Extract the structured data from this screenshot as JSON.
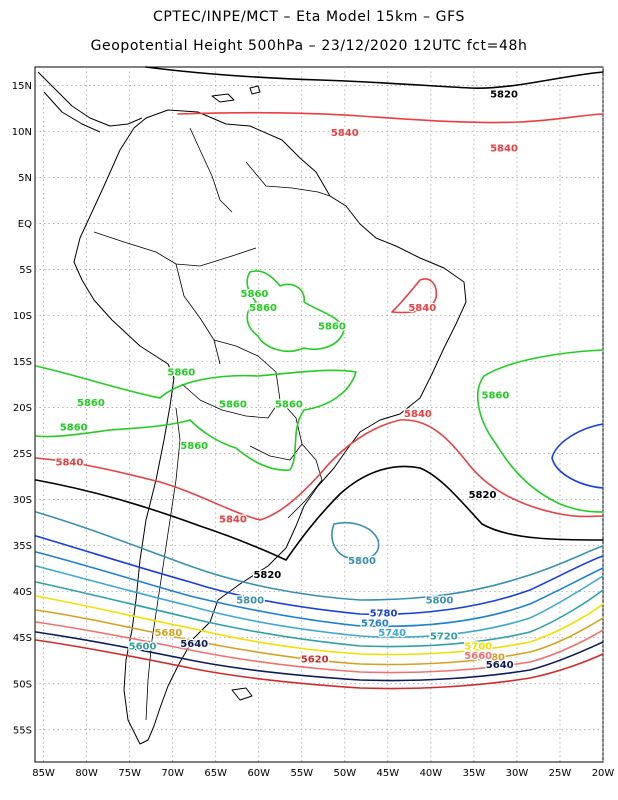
{
  "title": {
    "line1": "CPTEC/INPE/MCT –  Eta Model 15km – GFS",
    "line2": "Geopotential Height 500hPa – 23/12/2020 12UTC fct=48h"
  },
  "axes": {
    "lat_labels": [
      "15N",
      "10N",
      "5N",
      "EQ",
      "5S",
      "10S",
      "15S",
      "20S",
      "25S",
      "30S",
      "35S",
      "40S",
      "45S",
      "50S",
      "55S"
    ],
    "lat_values": [
      15,
      10,
      5,
      0,
      -5,
      -10,
      -15,
      -20,
      -25,
      -30,
      -35,
      -40,
      -45,
      -50,
      -55
    ],
    "lon_labels": [
      "85W",
      "80W",
      "75W",
      "70W",
      "65W",
      "60W",
      "55W",
      "50W",
      "45W",
      "40W",
      "35W",
      "30W",
      "25W",
      "20W"
    ],
    "lon_values": [
      -85,
      -80,
      -75,
      -70,
      -65,
      -60,
      -55,
      -50,
      -45,
      -40,
      -35,
      -30,
      -25,
      -20
    ],
    "lon_range": [
      -86,
      -20
    ],
    "lat_range": [
      -58.5,
      17
    ],
    "grid": "dotted"
  },
  "colors": {
    "c5620": "#d02a2a",
    "c5640": "#0e1a5a",
    "c5660": "#f07070",
    "c5680": "#d4a020",
    "c5700": "#f0e000",
    "c5720": "#30a0a0",
    "c5740": "#40a8d0",
    "c5760": "#2080d0",
    "c5780": "#1840d8",
    "c5800": "#3a8fb0",
    "c5820": "#000000",
    "c5840": "#e84040",
    "c5860": "#22cc22"
  },
  "contour_labels": [
    {
      "text": "5820",
      "lon": -31.5,
      "lat": 13.7,
      "color": "c5820"
    },
    {
      "text": "5840",
      "lon": -50,
      "lat": 9.5,
      "color": "c5840"
    },
    {
      "text": "5840",
      "lon": -31.5,
      "lat": 7.8,
      "color": "c5840"
    },
    {
      "text": "5860",
      "lon": -60.5,
      "lat": -8,
      "color": "c5860"
    },
    {
      "text": "5860",
      "lon": -59.5,
      "lat": -9.5,
      "color": "c5860"
    },
    {
      "text": "5860",
      "lon": -51.5,
      "lat": -11.5,
      "color": "c5860"
    },
    {
      "text": "5840",
      "lon": -41,
      "lat": -9.5,
      "color": "c5840"
    },
    {
      "text": "5860",
      "lon": -69,
      "lat": -16.5,
      "color": "c5860"
    },
    {
      "text": "5860",
      "lon": -79.5,
      "lat": -19.8,
      "color": "c5860"
    },
    {
      "text": "5860",
      "lon": -81.5,
      "lat": -22.5,
      "color": "c5860"
    },
    {
      "text": "5860",
      "lon": -67.5,
      "lat": -24.5,
      "color": "c5860"
    },
    {
      "text": "5860",
      "lon": -63,
      "lat": -20,
      "color": "c5860"
    },
    {
      "text": "5860",
      "lon": -56.5,
      "lat": -20,
      "color": "c5860"
    },
    {
      "text": "5840",
      "lon": -41.5,
      "lat": -21,
      "color": "c5840"
    },
    {
      "text": "5860",
      "lon": -32.5,
      "lat": -19,
      "color": "c5860"
    },
    {
      "text": "5840",
      "lon": -82,
      "lat": -26.3,
      "color": "c5840"
    },
    {
      "text": "5820",
      "lon": -34,
      "lat": -29.8,
      "color": "c5820"
    },
    {
      "text": "5840",
      "lon": -63,
      "lat": -32.5,
      "color": "c5840"
    },
    {
      "text": "5800",
      "lon": -48,
      "lat": -37,
      "color": "c5800"
    },
    {
      "text": "5820",
      "lon": -59,
      "lat": -38.5,
      "color": "c5820"
    },
    {
      "text": "5800",
      "lon": -61,
      "lat": -41.3,
      "color": "c5800"
    },
    {
      "text": "5800",
      "lon": -39,
      "lat": -41.3,
      "color": "c5800"
    },
    {
      "text": "5780",
      "lon": -45.5,
      "lat": -42.7,
      "color": "c5780"
    },
    {
      "text": "5760",
      "lon": -46.5,
      "lat": -43.8,
      "color": "c5760"
    },
    {
      "text": "5740",
      "lon": -44.5,
      "lat": -44.8,
      "color": "c5740"
    },
    {
      "text": "5720",
      "lon": -38.5,
      "lat": -45.2,
      "color": "c5720"
    },
    {
      "text": "5700",
      "lon": -34.5,
      "lat": -46.3,
      "color": "c5700"
    },
    {
      "text": "5680",
      "lon": -70.5,
      "lat": -44.8,
      "color": "c5680"
    },
    {
      "text": "5680",
      "lon": -33,
      "lat": -47.5,
      "color": "c5680"
    },
    {
      "text": "5660",
      "lon": -34.5,
      "lat": -47.3,
      "color": "c5660"
    },
    {
      "text": "5640",
      "lon": -32,
      "lat": -48.3,
      "color": "c5640"
    },
    {
      "text": "5600",
      "lon": -73.5,
      "lat": -46.3,
      "color": "c5720"
    },
    {
      "text": "5640",
      "lon": -67.5,
      "lat": -46,
      "color": "c5640"
    },
    {
      "text": "5620",
      "lon": -53.5,
      "lat": -47.7,
      "color": "c5620"
    }
  ]
}
